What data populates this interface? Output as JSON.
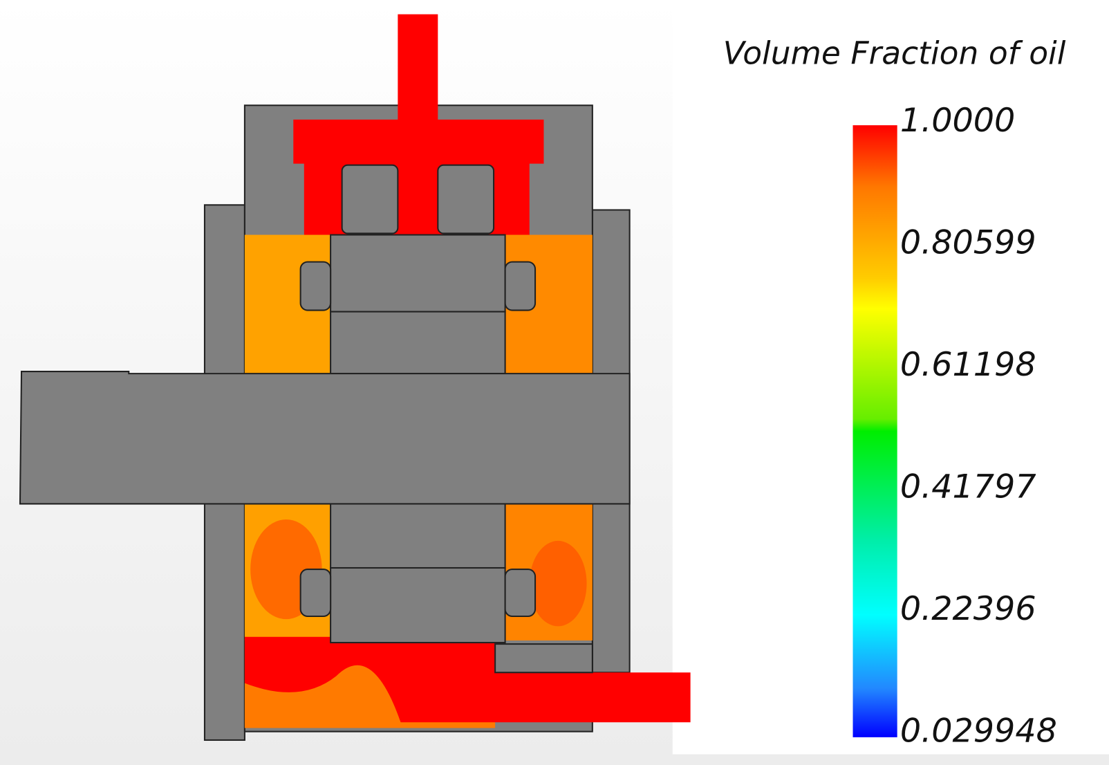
{
  "title": "Volume Fraction of oil",
  "legend": {
    "labels": [
      "1.0000",
      "0.80599",
      "0.61198",
      "0.41797",
      "0.22396",
      "0.029948"
    ]
  }
}
